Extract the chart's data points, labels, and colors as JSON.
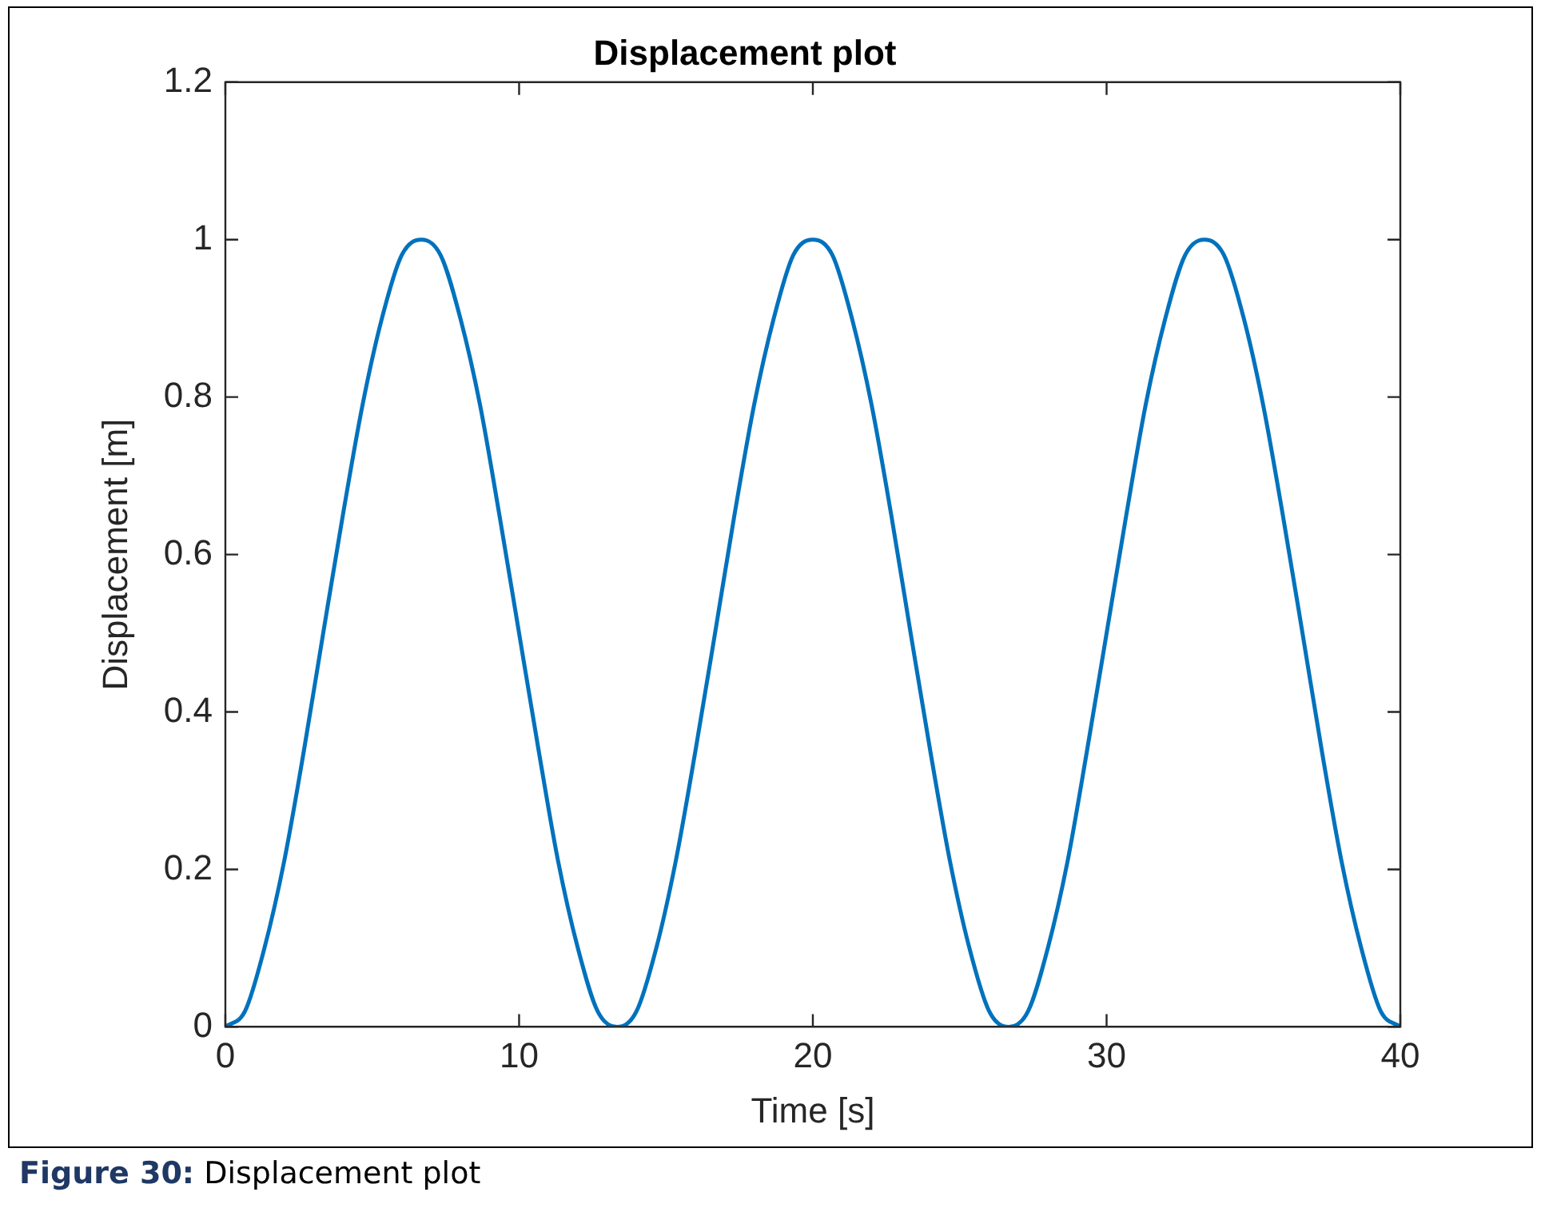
{
  "chart_data": {
    "type": "line",
    "title": "Displacement plot",
    "xlabel": "Time [s]",
    "ylabel": "Displacement [m]",
    "annotations": [
      "Figure 30: Displacement plot"
    ],
    "x": [
      0,
      0.67,
      1.33,
      2,
      2.67,
      3.33,
      4,
      4.67,
      5.33,
      6,
      6.67,
      7.33,
      8,
      8.67,
      9.33,
      10,
      10.67,
      11.33,
      12,
      12.67,
      13.33,
      14,
      14.67,
      15.33,
      16,
      16.67,
      17.33,
      18,
      18.67,
      19.33,
      20,
      20.67,
      21.33,
      22,
      22.67,
      23.33,
      24,
      24.67,
      25.33,
      26,
      26.67,
      27.33,
      28,
      28.67,
      29.33,
      30,
      30.67,
      31.33,
      32,
      32.67,
      33.33,
      34,
      34.67,
      35.33,
      36,
      36.67,
      37.33,
      38,
      38.67,
      39.33,
      40
    ],
    "series": [
      {
        "color": "#0072bd",
        "values": [
          0,
          0.02,
          0.1,
          0.21,
          0.35,
          0.5,
          0.65,
          0.79,
          0.9,
          0.98,
          1,
          0.98,
          0.9,
          0.79,
          0.65,
          0.5,
          0.35,
          0.21,
          0.1,
          0.02,
          0,
          0.02,
          0.1,
          0.21,
          0.35,
          0.5,
          0.65,
          0.79,
          0.9,
          0.98,
          1,
          0.98,
          0.9,
          0.79,
          0.65,
          0.5,
          0.35,
          0.21,
          0.1,
          0.02,
          0,
          0.02,
          0.1,
          0.21,
          0.35,
          0.5,
          0.65,
          0.79,
          0.9,
          0.98,
          1,
          0.98,
          0.9,
          0.79,
          0.65,
          0.5,
          0.35,
          0.21,
          0.1,
          0.02,
          0
        ]
      }
    ],
    "xlim": [
      0,
      40
    ],
    "xticks": [
      0,
      10,
      20,
      30,
      40
    ],
    "ylim": [
      0,
      1.2
    ],
    "yticks": [
      0,
      0.2,
      0.4,
      0.6,
      0.8,
      1,
      1.2
    ],
    "grid": false,
    "legend": false,
    "marker": "none",
    "line_style": "solid"
  }
}
